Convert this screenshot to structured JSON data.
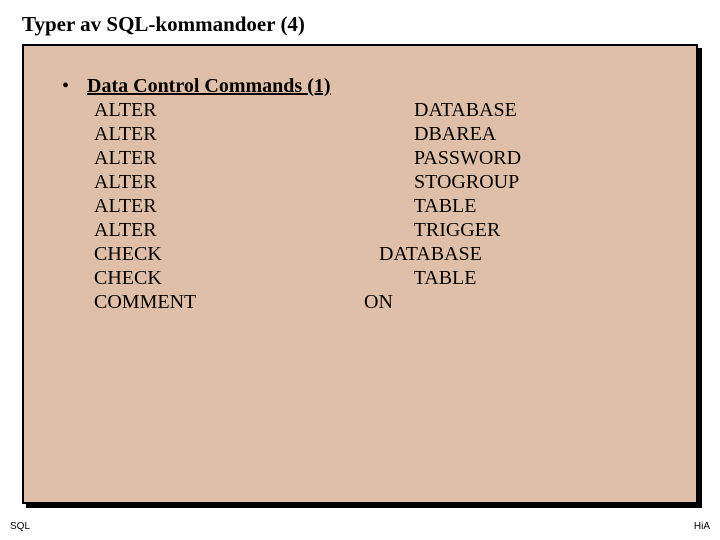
{
  "slide": {
    "title": "Typer av SQL-kommandoer (4)",
    "heading": "Data Control Commands (1)",
    "bullet_char": "•",
    "commands": [
      {
        "left": "ALTER",
        "right": "          DATABASE"
      },
      {
        "left": "ALTER",
        "right": "          DBAREA"
      },
      {
        "left": "ALTER",
        "right": "          PASSWORD"
      },
      {
        "left": "ALTER",
        "right": "          STOGROUP"
      },
      {
        "left": "ALTER",
        "right": "          TABLE"
      },
      {
        "left": "ALTER",
        "right": "          TRIGGER"
      },
      {
        "left": "CHECK",
        "right": "   DATABASE"
      },
      {
        "left": "CHECK",
        "right": "          TABLE"
      },
      {
        "left": "COMMENT",
        "right": "ON"
      }
    ],
    "footer_left": "SQL",
    "footer_right": "HiA",
    "colors": {
      "content_bg": "#dfbfa8",
      "page_bg": "#ffffff",
      "text": "#000000",
      "border": "#000000"
    },
    "typography": {
      "title_fontsize": 21,
      "body_fontsize": 20,
      "footer_fontsize": 10
    }
  }
}
